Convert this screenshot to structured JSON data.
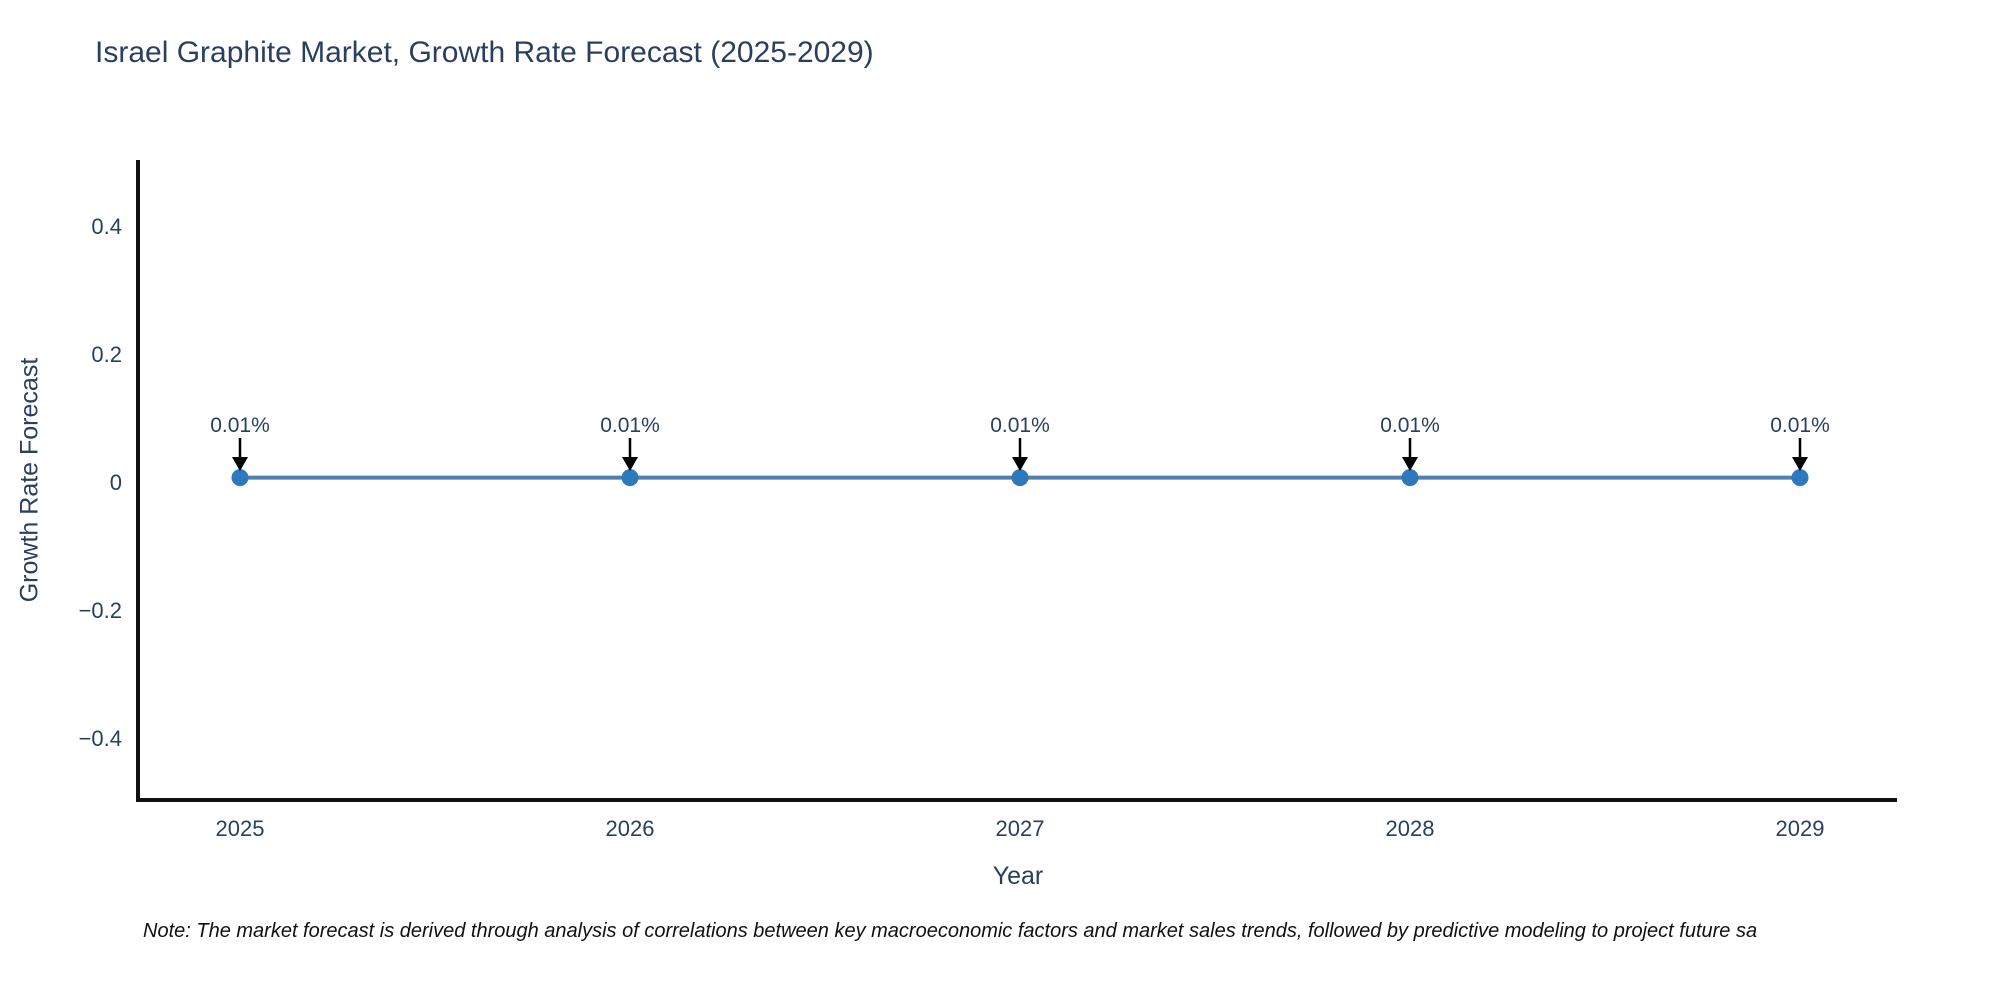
{
  "title": {
    "text": "Israel Graphite Market, Growth Rate Forecast (2025-2029)",
    "color": "#2a3f5f"
  },
  "note": {
    "text": "Note: The market forecast is derived through analysis of correlations between key macroeconomic factors and market sales trends, followed by predictive modeling to project future sa"
  },
  "chart_data": {
    "type": "line",
    "title": "Israel Graphite Market, Growth Rate Forecast (2025-2029)",
    "xlabel": "Year",
    "ylabel": "Growth Rate Forecast",
    "x": [
      2025,
      2026,
      2027,
      2028,
      2029
    ],
    "xticklabels": [
      "2025",
      "2026",
      "2027",
      "2028",
      "2029"
    ],
    "series": [
      {
        "name": "Growth Rate Forecast",
        "values": [
          0.01,
          0.01,
          0.01,
          0.01,
          0.01
        ]
      }
    ],
    "point_labels": [
      "0.01%",
      "0.01%",
      "0.01%",
      "0.01%",
      "0.01%"
    ],
    "yticks": [
      0.4,
      0.2,
      0,
      -0.2,
      -0.4
    ],
    "yticklabels": [
      "0.4",
      "0.2",
      "0",
      "−0.2",
      "−0.4"
    ],
    "ylim": [
      -0.49,
      0.51
    ],
    "grid": false,
    "legend": "none",
    "colors": {
      "line": "#4f7fac",
      "marker": "#2e78bd",
      "axis": "#111111",
      "tick_text": "#2a3f5f",
      "annotation_text": "#2a3f5f",
      "arrow": "#000000"
    }
  }
}
